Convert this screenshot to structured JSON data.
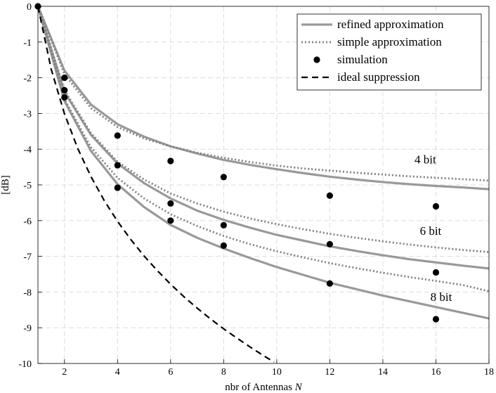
{
  "chart_data": {
    "type": "line",
    "title": "",
    "xlabel": "nbr of Antennas N",
    "ylabel": "[dB]",
    "xlim": [
      1,
      18
    ],
    "ylim": [
      -10,
      0
    ],
    "xticks": [
      2,
      4,
      6,
      8,
      10,
      12,
      14,
      16,
      18
    ],
    "yticks": [
      0,
      -1,
      -2,
      -3,
      -4,
      -5,
      -6,
      -7,
      -8,
      -9,
      -10
    ],
    "grid": true,
    "legend_position": "top-right",
    "colors": {
      "refined": "#999999",
      "simple": "#808080",
      "simulation": "#000000",
      "ideal": "#000000",
      "grid": "#dcdcdc"
    },
    "legend": [
      {
        "label": "refined approximation",
        "style": "solid"
      },
      {
        "label": "simple approximation",
        "style": "dotted"
      },
      {
        "label": "simulation",
        "style": "marker"
      },
      {
        "label": "ideal suppression",
        "style": "dashed"
      }
    ],
    "series": [
      {
        "name": "refined approximation 4 bit",
        "style": "solid",
        "x": [
          1,
          2,
          3,
          4,
          5,
          6,
          7,
          8,
          9,
          10,
          11,
          12,
          13,
          14,
          15,
          16,
          17,
          18
        ],
        "y": [
          0,
          -1.8,
          -2.75,
          -3.3,
          -3.65,
          -3.92,
          -4.12,
          -4.3,
          -4.44,
          -4.56,
          -4.67,
          -4.77,
          -4.85,
          -4.92,
          -4.98,
          -5.03,
          -5.07,
          -5.12
        ]
      },
      {
        "name": "refined approximation 6 bit",
        "style": "solid",
        "x": [
          1,
          2,
          3,
          4,
          5,
          6,
          7,
          8,
          9,
          10,
          11,
          12,
          13,
          14,
          15,
          16,
          17,
          18
        ],
        "y": [
          0,
          -2.4,
          -3.6,
          -4.4,
          -4.95,
          -5.38,
          -5.72,
          -5.98,
          -6.2,
          -6.4,
          -6.56,
          -6.72,
          -6.85,
          -6.97,
          -7.08,
          -7.17,
          -7.26,
          -7.34
        ]
      },
      {
        "name": "refined approximation 8 bit",
        "style": "solid",
        "x": [
          1,
          2,
          3,
          4,
          5,
          6,
          7,
          8,
          9,
          10,
          11,
          12,
          13,
          14,
          15,
          16,
          17,
          18
        ],
        "y": [
          0,
          -2.65,
          -4.05,
          -4.98,
          -5.62,
          -6.12,
          -6.48,
          -6.78,
          -7.05,
          -7.3,
          -7.52,
          -7.74,
          -7.92,
          -8.1,
          -8.26,
          -8.42,
          -8.58,
          -8.74
        ]
      },
      {
        "name": "simple approximation 4 bit",
        "style": "dotted",
        "x": [
          1,
          2,
          3,
          4,
          5,
          6,
          7,
          8,
          9,
          10,
          11,
          12,
          13,
          14,
          15,
          16,
          17,
          18
        ],
        "y": [
          0,
          -1.9,
          -2.85,
          -3.38,
          -3.7,
          -3.92,
          -4.1,
          -4.24,
          -4.36,
          -4.46,
          -4.54,
          -4.6,
          -4.66,
          -4.71,
          -4.76,
          -4.8,
          -4.84,
          -4.88
        ]
      },
      {
        "name": "simple approximation 6 bit",
        "style": "dotted",
        "x": [
          1,
          2,
          3,
          4,
          5,
          6,
          7,
          8,
          9,
          10,
          11,
          12,
          13,
          14,
          15,
          16,
          17,
          18
        ],
        "y": [
          0,
          -2.35,
          -3.55,
          -4.35,
          -4.85,
          -5.24,
          -5.52,
          -5.75,
          -5.94,
          -6.1,
          -6.24,
          -6.37,
          -6.48,
          -6.58,
          -6.67,
          -6.75,
          -6.82,
          -6.88
        ]
      },
      {
        "name": "simple approximation 8 bit",
        "style": "dotted",
        "x": [
          1,
          2,
          3,
          4,
          5,
          6,
          7,
          8,
          9,
          10,
          11,
          12,
          13,
          14,
          15,
          16,
          17,
          18
        ],
        "y": [
          0,
          -2.6,
          -3.95,
          -4.8,
          -5.38,
          -5.82,
          -6.15,
          -6.43,
          -6.66,
          -6.86,
          -7.03,
          -7.19,
          -7.33,
          -7.46,
          -7.58,
          -7.69,
          -7.8,
          -7.98
        ]
      },
      {
        "name": "simulation",
        "style": "marker",
        "points": [
          [
            1,
            0
          ],
          [
            2,
            -2
          ],
          [
            2,
            -2.35
          ],
          [
            2,
            -2.55
          ],
          [
            4,
            -3.62
          ],
          [
            4,
            -4.45
          ],
          [
            4,
            -5.08
          ],
          [
            6,
            -4.33
          ],
          [
            6,
            -5.52
          ],
          [
            6,
            -6.0
          ],
          [
            8,
            -4.78
          ],
          [
            8,
            -6.13
          ],
          [
            8,
            -6.7
          ],
          [
            12,
            -5.3
          ],
          [
            12,
            -6.66
          ],
          [
            12,
            -7.76
          ],
          [
            16,
            -5.6
          ],
          [
            16,
            -7.45
          ],
          [
            16,
            -8.76
          ]
        ]
      },
      {
        "name": "ideal suppression",
        "style": "dashed",
        "x": [
          1,
          1.5,
          2,
          2.5,
          3,
          3.5,
          4,
          4.5,
          5,
          5.5,
          6,
          6.5,
          7,
          7.5,
          8,
          8.5,
          9,
          9.5,
          9.9
        ],
        "y": [
          0,
          -1.76,
          -3.01,
          -3.98,
          -4.77,
          -5.44,
          -6.02,
          -6.53,
          -6.99,
          -7.4,
          -7.78,
          -8.13,
          -8.45,
          -8.75,
          -9.03,
          -9.29,
          -9.54,
          -9.78,
          -9.96
        ]
      }
    ],
    "annotations": [
      {
        "text": "4 bit",
        "x": 15.6,
        "y": -4.4
      },
      {
        "text": "6 bit",
        "x": 15.8,
        "y": -6.4
      },
      {
        "text": "8 bit",
        "x": 16.2,
        "y": -8.25
      }
    ]
  }
}
